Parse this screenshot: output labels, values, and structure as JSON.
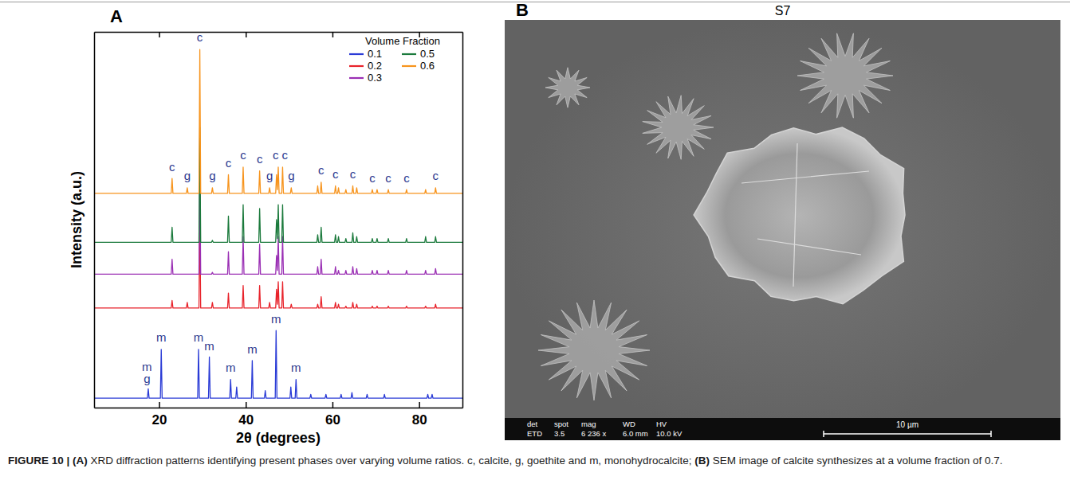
{
  "chart_data": {
    "type": "line",
    "x_label": "2θ (degrees)",
    "y_label": "Intensity (a.u.)",
    "xlim": [
      5,
      90
    ],
    "xticks": [
      20,
      40,
      60,
      80
    ],
    "ylim": [
      0,
      100
    ],
    "tick_labels": "x",
    "grid": false,
    "legend": "top right",
    "legend_title": "Volume Fraction",
    "series": [
      {
        "name": "0.1",
        "color": "#2a3bd6",
        "x": [
          5,
          17.3,
          17.5,
          17.7,
          20.3,
          20.5,
          20.7,
          28.9,
          29.1,
          29.3,
          31.4,
          31.6,
          31.8,
          36.3,
          36.5,
          36.7,
          37.7,
          37.9,
          38.1,
          41.3,
          41.5,
          41.7,
          44.3,
          44.5,
          44.7,
          46.8,
          47.0,
          47.2,
          50.2,
          50.4,
          50.6,
          51.4,
          51.6,
          51.8,
          54.8,
          55.0,
          55.2,
          58.3,
          58.5,
          58.7,
          61.8,
          62.0,
          62.2,
          64.3,
          64.5,
          64.7,
          67.8,
          68.0,
          68.2,
          71.8,
          72.0,
          72.2,
          81.8,
          82.0,
          82.2,
          82.8,
          83.0,
          83.2,
          90
        ],
        "values": [
          2.5,
          2.5,
          5,
          2.5,
          2.5,
          15.5,
          2.5,
          2.5,
          15.5,
          2.5,
          2.5,
          13.5,
          2.5,
          2.5,
          7.5,
          2.5,
          2.5,
          5.5,
          2.5,
          2.5,
          12.5,
          2.5,
          2.5,
          4.5,
          2.5,
          2.5,
          20.5,
          2.5,
          2.5,
          5.5,
          2.5,
          2.5,
          7.5,
          2.5,
          2.5,
          3.5,
          2.5,
          2.5,
          3.5,
          2.5,
          2.5,
          3.5,
          2.5,
          2.5,
          4,
          2.5,
          2.5,
          3.5,
          2.5,
          2.5,
          3.5,
          2.5,
          2.5,
          3.5,
          2.5,
          2.5,
          3.5,
          2.5,
          2.5
        ]
      },
      {
        "name": "0.2",
        "color": "#e8232b",
        "x": [
          5,
          22.8,
          23.0,
          23.2,
          26.3,
          26.5,
          26.7,
          29.2,
          29.4,
          29.6,
          32.1,
          32.3,
          32.5,
          35.8,
          36.0,
          36.2,
          39.2,
          39.4,
          39.6,
          43.0,
          43.2,
          43.4,
          45.3,
          45.5,
          45.7,
          46.9,
          47.1,
          47.3,
          47.5,
          47.7,
          48.3,
          48.5,
          48.7,
          50.3,
          50.5,
          50.7,
          56.4,
          56.6,
          56.8,
          57.2,
          57.4,
          57.6,
          60.5,
          60.7,
          60.9,
          61.2,
          61.4,
          61.6,
          62.9,
          63.1,
          63.3,
          64.5,
          64.7,
          64.9,
          65.4,
          65.6,
          65.8,
          69.0,
          69.2,
          69.4,
          70.1,
          70.3,
          70.5,
          72.7,
          72.9,
          73.1,
          76.9,
          77.1,
          77.3,
          81.3,
          81.5,
          81.7,
          83.6,
          83.8,
          84.0,
          90
        ],
        "values": [
          26.5,
          26.5,
          28.5,
          26.5,
          26.5,
          28,
          26.5,
          26.5,
          52.3,
          26.5,
          26.5,
          28,
          26.5,
          26.5,
          30.5,
          26.5,
          26.5,
          32.5,
          26.5,
          26.5,
          32.5,
          26.5,
          26.5,
          28,
          26.5,
          26.5,
          31.5,
          27.5,
          33.5,
          26.5,
          26.5,
          33.5,
          26.5,
          26.5,
          27.5,
          26.5,
          26.5,
          27.5,
          26.5,
          26.5,
          29.5,
          26.5,
          26.5,
          28,
          26.5,
          26.5,
          27.5,
          26.5,
          26.5,
          27,
          26.5,
          26.5,
          28,
          26.5,
          26.5,
          27.5,
          26.5,
          26.5,
          27,
          26.5,
          26.5,
          27,
          26.5,
          26.5,
          27,
          26.5,
          26.5,
          27,
          26.5,
          26.5,
          27,
          26.5,
          26.5,
          27.5,
          26.5,
          26.5
        ]
      },
      {
        "name": "0.3",
        "color": "#9a2fb4",
        "x": [
          5,
          22.8,
          23.0,
          23.2,
          26.3,
          26.5,
          26.7,
          29.2,
          29.4,
          29.6,
          32.1,
          32.3,
          32.5,
          35.8,
          36.0,
          36.2,
          39.2,
          39.4,
          39.6,
          43.0,
          43.2,
          43.4,
          45.3,
          45.5,
          45.7,
          46.9,
          47.1,
          47.3,
          47.5,
          47.7,
          48.3,
          48.5,
          48.7,
          50.3,
          50.5,
          50.7,
          56.4,
          56.6,
          56.8,
          57.2,
          57.4,
          57.6,
          60.5,
          60.7,
          60.9,
          61.2,
          61.4,
          61.6,
          62.9,
          63.1,
          63.3,
          64.5,
          64.7,
          64.9,
          65.4,
          65.6,
          65.8,
          69.0,
          69.2,
          69.4,
          70.1,
          70.3,
          70.5,
          72.7,
          72.9,
          73.1,
          76.9,
          77.1,
          77.3,
          81.3,
          81.5,
          81.7,
          83.6,
          83.8,
          84.0,
          90
        ],
        "values": [
          35.5,
          35.5,
          39.5,
          35.5,
          35.5,
          35.5,
          35.5,
          35.5,
          65.5,
          35.5,
          35.5,
          36,
          35.5,
          35.5,
          41.5,
          35.5,
          35.5,
          45.5,
          35.5,
          35.5,
          43.5,
          35.5,
          35.5,
          35.5,
          35.5,
          35.5,
          40.5,
          36.5,
          45.5,
          35.5,
          35.5,
          45.5,
          35.5,
          35.5,
          35.5,
          35.5,
          35.5,
          37.5,
          35.5,
          35.5,
          39.5,
          35.5,
          35.5,
          37.5,
          35.5,
          35.5,
          36.5,
          35.5,
          35.5,
          36.5,
          35.5,
          35.5,
          37.5,
          35.5,
          35.5,
          37,
          35.5,
          35.5,
          36.5,
          35.5,
          35.5,
          36.5,
          35.5,
          35.5,
          36.5,
          35.5,
          35.5,
          36.5,
          35.5,
          35.5,
          36.5,
          35.5,
          35.5,
          37,
          35.5,
          35.5
        ]
      },
      {
        "name": "0.5",
        "color": "#1b7a3c",
        "x": [
          5,
          22.8,
          23.0,
          23.2,
          26.3,
          26.5,
          26.7,
          29.2,
          29.4,
          29.6,
          32.1,
          32.3,
          32.5,
          35.8,
          36.0,
          36.2,
          39.2,
          39.4,
          39.6,
          43.0,
          43.2,
          43.4,
          45.3,
          45.5,
          45.7,
          46.9,
          47.1,
          47.3,
          47.5,
          47.7,
          48.3,
          48.5,
          48.7,
          50.3,
          50.5,
          50.7,
          56.4,
          56.6,
          56.8,
          57.2,
          57.4,
          57.6,
          60.5,
          60.7,
          60.9,
          61.2,
          61.4,
          61.6,
          62.9,
          63.1,
          63.3,
          64.5,
          64.7,
          64.9,
          65.4,
          65.6,
          65.8,
          69.0,
          69.2,
          69.4,
          70.1,
          70.3,
          70.5,
          72.7,
          72.9,
          73.1,
          76.9,
          77.1,
          77.3,
          81.3,
          81.5,
          81.7,
          83.6,
          83.8,
          84.0,
          90
        ],
        "values": [
          44,
          44,
          48,
          44,
          44,
          44,
          44,
          44,
          74.6,
          44,
          44,
          44.5,
          44,
          44,
          51,
          44,
          44,
          54,
          44,
          44,
          53,
          44,
          44,
          44,
          44,
          44,
          50,
          45,
          54,
          44,
          44,
          54,
          44,
          44,
          44,
          44,
          44,
          46,
          44,
          44,
          48,
          44,
          44,
          46,
          44,
          44,
          45.5,
          44,
          44,
          45,
          44,
          44,
          46.5,
          44,
          44,
          45.5,
          44,
          44,
          45,
          44,
          44,
          45,
          44,
          44,
          45,
          44,
          44,
          45,
          44,
          44,
          45.5,
          44,
          44,
          45.5,
          44,
          44
        ]
      },
      {
        "name": "0.6",
        "color": "#f7941d",
        "x": [
          5,
          22.8,
          23.0,
          23.2,
          26.3,
          26.5,
          26.7,
          29.2,
          29.4,
          29.6,
          32.1,
          32.3,
          32.5,
          35.8,
          36.0,
          36.2,
          39.2,
          39.4,
          39.6,
          43.0,
          43.2,
          43.4,
          45.3,
          45.5,
          45.7,
          46.9,
          47.1,
          47.3,
          47.5,
          47.7,
          48.3,
          48.5,
          48.7,
          50.3,
          50.5,
          50.7,
          56.4,
          56.6,
          56.8,
          57.2,
          57.4,
          57.6,
          60.5,
          60.7,
          60.9,
          61.2,
          61.4,
          61.6,
          62.9,
          63.1,
          63.3,
          64.5,
          64.7,
          64.9,
          65.4,
          65.6,
          65.8,
          69.0,
          69.2,
          69.4,
          70.1,
          70.3,
          70.5,
          72.7,
          72.9,
          73.1,
          76.9,
          77.1,
          77.3,
          81.3,
          81.5,
          81.7,
          83.6,
          83.8,
          84.0,
          90
        ],
        "values": [
          57,
          57,
          61,
          57,
          57,
          58.5,
          57,
          57,
          95.3,
          57,
          57,
          58.5,
          57,
          57,
          62,
          57,
          57,
          64,
          57,
          57,
          63,
          57,
          57,
          58.5,
          57,
          57,
          62,
          58,
          64,
          57,
          57,
          64,
          57,
          57,
          58.5,
          57,
          57,
          59,
          57,
          57,
          60,
          57,
          57,
          59,
          57,
          57,
          58.5,
          57,
          57,
          58,
          57,
          57,
          59,
          57,
          57,
          58.5,
          57,
          57,
          58,
          57,
          57,
          58,
          57,
          57,
          58,
          57,
          57,
          58,
          57,
          57,
          58,
          57,
          57,
          58.5,
          57,
          57
        ]
      }
    ],
    "annotations": [
      {
        "text": "c",
        "x": 23.0,
        "y": 63
      },
      {
        "text": "g",
        "x": 26.5,
        "y": 60.5
      },
      {
        "text": "c",
        "x": 29.4,
        "y": 97.5
      },
      {
        "text": "g",
        "x": 32.3,
        "y": 60.5
      },
      {
        "text": "c",
        "x": 36.0,
        "y": 64
      },
      {
        "text": "c",
        "x": 39.4,
        "y": 66
      },
      {
        "text": "c",
        "x": 43.2,
        "y": 65
      },
      {
        "text": "g",
        "x": 45.5,
        "y": 60.5
      },
      {
        "text": "c",
        "x": 46.9,
        "y": 66
      },
      {
        "text": "c",
        "x": 49.0,
        "y": 66
      },
      {
        "text": "g",
        "x": 50.5,
        "y": 60.5
      },
      {
        "text": "c",
        "x": 57.4,
        "y": 62
      },
      {
        "text": "c",
        "x": 60.7,
        "y": 61
      },
      {
        "text": "c",
        "x": 64.7,
        "y": 61
      },
      {
        "text": "c",
        "x": 69.2,
        "y": 60
      },
      {
        "text": "c",
        "x": 72.9,
        "y": 60
      },
      {
        "text": "c",
        "x": 77.1,
        "y": 60
      },
      {
        "text": "c",
        "x": 83.8,
        "y": 60.5
      },
      {
        "text": "m",
        "x": 17.2,
        "y": 9.8
      },
      {
        "text": "g",
        "x": 17.2,
        "y": 6.5
      },
      {
        "text": "m",
        "x": 20.5,
        "y": 17.5
      },
      {
        "text": "m",
        "x": 29.1,
        "y": 17.5
      },
      {
        "text": "m",
        "x": 31.6,
        "y": 15.3
      },
      {
        "text": "m",
        "x": 36.5,
        "y": 9.5
      },
      {
        "text": "m",
        "x": 41.5,
        "y": 14.5
      },
      {
        "text": "m",
        "x": 47.0,
        "y": 22.5
      },
      {
        "text": "m",
        "x": 51.6,
        "y": 9.5
      }
    ]
  },
  "panel_a": {
    "label": "A"
  },
  "panel_b": {
    "label": "B",
    "title": "S7",
    "info_bar": {
      "headers": [
        "det",
        "spot",
        "mag",
        "WD",
        "HV"
      ],
      "values": [
        "ETD",
        "3.5",
        "6 236 x",
        "6.0 mm",
        "10.0 kV"
      ],
      "scale_bar": "10 µm"
    }
  },
  "caption": {
    "segments": [
      {
        "text": "FIGURE 10 | (A)",
        "bold": true
      },
      {
        "text": " XRD diffraction patterns identifying present phases over varying volume ratios. c, calcite, g, goethite and m, monohydrocalcite; ",
        "bold": false
      },
      {
        "text": "(B)",
        "bold": true
      },
      {
        "text": " SEM image of calcite synthesizes at a volume fraction of 0.7.",
        "bold": false
      }
    ]
  }
}
